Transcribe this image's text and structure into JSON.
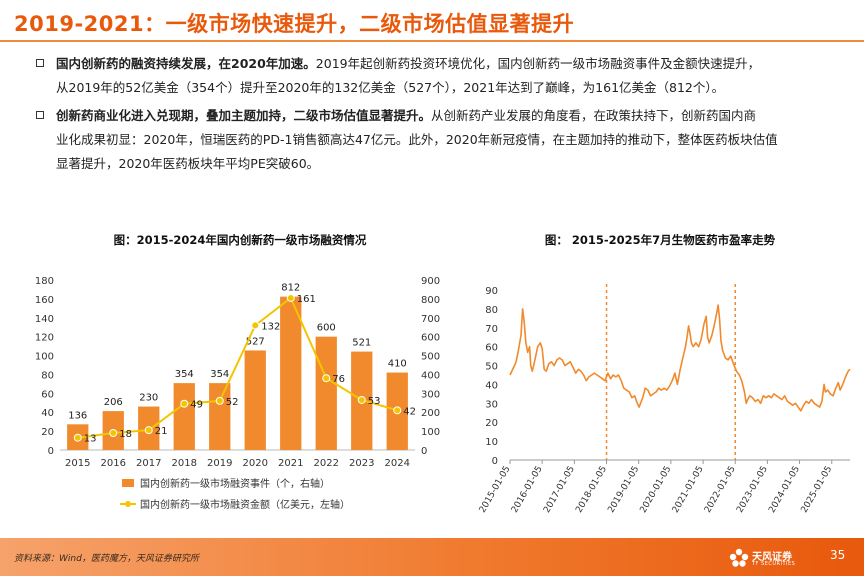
{
  "header": {
    "title": "2019-2021：一级市场快速提升，二级市场估值显著提升"
  },
  "bullets": [
    {
      "bold": "国内创新药的融资持续发展，在2020年加速。",
      "line1": "2019年起创新药投资环境优化，国内创新药一级市场融资事件及金额快速提升，",
      "line2": "从2019年的52亿美金（354个）提升至2020年的132亿美金（527个），2021年达到了巅峰，为161亿美金（812个）。"
    },
    {
      "bold": "创新药商业化进入兑现期，叠加主题加持，二级市场估值显著提升。",
      "line1": "从创新药产业发展的角度看，在政策扶持下，创新药国内商",
      "line2": "业化成果初显：2020年，恒瑞医药的PD-1销售额高达47亿元。此外，2020年新冠疫情，在主题加持的推动下，整体医药板块估值",
      "line3": "显著提升，2020年医药板块年平均PE突破60。"
    }
  ],
  "chart_data": [
    {
      "type": "bar",
      "title": "图：2015-2024年国内创新药一级市场融资情况",
      "categories": [
        "2015",
        "2016",
        "2017",
        "2018",
        "2019",
        "2020",
        "2021",
        "2022",
        "2023",
        "2024"
      ],
      "series": [
        {
          "name": "国内创新药一级市场融资事件（个，右轴）",
          "type": "bar",
          "axis": "right",
          "color": "#f08a2c",
          "values": [
            136,
            206,
            230,
            354,
            354,
            527,
            812,
            600,
            521,
            410
          ]
        },
        {
          "name": "国内创新药一级市场融资金额（亿美元，左轴）",
          "type": "line",
          "axis": "left",
          "color": "#f5c400",
          "values": [
            13,
            18,
            21,
            49,
            52,
            132,
            161,
            76,
            53,
            42
          ]
        }
      ],
      "y_left": {
        "min": 0,
        "max": 180,
        "step": 20
      },
      "y_right": {
        "min": 0,
        "max": 900,
        "step": 100
      },
      "legend_position": "bottom"
    },
    {
      "type": "line",
      "title": "图：  2015-2025年7月生物医药市盈率走势",
      "y": {
        "min": 0,
        "max": 90,
        "step": 10
      },
      "x_ticks": [
        "2015-01-05",
        "2016-01-05",
        "2017-01-05",
        "2018-01-05",
        "2019-01-05",
        "2020-01-05",
        "2021-01-05",
        "2022-01-05",
        "2023-01-05",
        "2024-01-05",
        "2025-01-05"
      ],
      "x_range": [
        "2015-01-05",
        "2025-07-31"
      ],
      "color": "#f08a2c",
      "markers": [
        "2018-01-05",
        "2022-01-05"
      ],
      "points": [
        [
          "2015-01-05",
          45
        ],
        [
          "2015-02-15",
          49
        ],
        [
          "2015-03-15",
          52
        ],
        [
          "2015-04-10",
          58
        ],
        [
          "2015-05-10",
          66
        ],
        [
          "2015-05-28",
          80
        ],
        [
          "2015-06-15",
          73
        ],
        [
          "2015-07-05",
          62
        ],
        [
          "2015-07-25",
          57
        ],
        [
          "2015-08-15",
          60
        ],
        [
          "2015-08-28",
          50
        ],
        [
          "2015-09-15",
          47
        ],
        [
          "2015-10-15",
          53
        ],
        [
          "2015-11-15",
          60
        ],
        [
          "2015-12-15",
          62
        ],
        [
          "2016-01-05",
          59
        ],
        [
          "2016-01-28",
          48
        ],
        [
          "2016-02-20",
          47
        ],
        [
          "2016-03-20",
          51
        ],
        [
          "2016-04-20",
          52
        ],
        [
          "2016-05-20",
          50
        ],
        [
          "2016-06-20",
          53
        ],
        [
          "2016-07-20",
          54
        ],
        [
          "2016-08-20",
          53
        ],
        [
          "2016-09-20",
          50
        ],
        [
          "2016-10-20",
          51
        ],
        [
          "2016-11-20",
          52
        ],
        [
          "2016-12-20",
          49
        ],
        [
          "2017-01-20",
          46
        ],
        [
          "2017-02-20",
          48
        ],
        [
          "2017-03-20",
          47
        ],
        [
          "2017-04-20",
          45
        ],
        [
          "2017-05-20",
          42
        ],
        [
          "2017-06-20",
          44
        ],
        [
          "2017-07-20",
          45
        ],
        [
          "2017-08-20",
          46
        ],
        [
          "2017-09-20",
          45
        ],
        [
          "2017-10-20",
          44
        ],
        [
          "2017-11-20",
          43
        ],
        [
          "2017-12-20",
          42
        ],
        [
          "2018-01-20",
          46
        ],
        [
          "2018-02-20",
          43
        ],
        [
          "2018-03-20",
          45
        ],
        [
          "2018-04-20",
          44
        ],
        [
          "2018-05-20",
          45
        ],
        [
          "2018-06-20",
          42
        ],
        [
          "2018-07-20",
          38
        ],
        [
          "2018-08-20",
          37
        ],
        [
          "2018-09-20",
          36
        ],
        [
          "2018-10-20",
          33
        ],
        [
          "2018-11-20",
          34
        ],
        [
          "2018-12-20",
          30
        ],
        [
          "2019-01-10",
          28
        ],
        [
          "2019-02-20",
          33
        ],
        [
          "2019-03-20",
          38
        ],
        [
          "2019-04-20",
          37
        ],
        [
          "2019-05-20",
          34
        ],
        [
          "2019-06-20",
          35
        ],
        [
          "2019-07-20",
          36
        ],
        [
          "2019-08-20",
          38
        ],
        [
          "2019-09-20",
          37
        ],
        [
          "2019-10-20",
          38
        ],
        [
          "2019-11-20",
          37
        ],
        [
          "2019-12-20",
          39
        ],
        [
          "2020-01-20",
          42
        ],
        [
          "2020-02-20",
          46
        ],
        [
          "2020-03-20",
          40
        ],
        [
          "2020-04-20",
          48
        ],
        [
          "2020-05-20",
          54
        ],
        [
          "2020-06-20",
          60
        ],
        [
          "2020-07-10",
          66
        ],
        [
          "2020-07-25",
          71
        ],
        [
          "2020-08-10",
          67
        ],
        [
          "2020-08-25",
          62
        ],
        [
          "2020-09-15",
          60
        ],
        [
          "2020-10-15",
          62
        ],
        [
          "2020-11-15",
          60
        ],
        [
          "2020-12-15",
          64
        ],
        [
          "2021-01-15",
          72
        ],
        [
          "2021-02-10",
          76
        ],
        [
          "2021-02-25",
          65
        ],
        [
          "2021-03-15",
          62
        ],
        [
          "2021-04-15",
          66
        ],
        [
          "2021-05-15",
          72
        ],
        [
          "2021-06-10",
          78
        ],
        [
          "2021-06-25",
          82
        ],
        [
          "2021-07-10",
          75
        ],
        [
          "2021-07-28",
          63
        ],
        [
          "2021-08-15",
          58
        ],
        [
          "2021-09-15",
          54
        ],
        [
          "2021-10-15",
          53
        ],
        [
          "2021-11-15",
          55
        ],
        [
          "2021-12-15",
          51
        ],
        [
          "2022-01-20",
          47
        ],
        [
          "2022-02-20",
          45
        ],
        [
          "2022-03-20",
          42
        ],
        [
          "2022-04-20",
          36
        ],
        [
          "2022-05-10",
          30
        ],
        [
          "2022-05-25",
          32
        ],
        [
          "2022-06-20",
          34
        ],
        [
          "2022-07-20",
          33
        ],
        [
          "2022-08-20",
          31
        ],
        [
          "2022-09-20",
          32
        ],
        [
          "2022-10-20",
          30
        ],
        [
          "2022-11-20",
          34
        ],
        [
          "2022-12-20",
          33
        ],
        [
          "2023-01-20",
          34
        ],
        [
          "2023-02-20",
          33
        ],
        [
          "2023-03-20",
          35
        ],
        [
          "2023-04-20",
          34
        ],
        [
          "2023-05-20",
          33
        ],
        [
          "2023-06-20",
          32
        ],
        [
          "2023-07-20",
          34
        ],
        [
          "2023-08-20",
          31
        ],
        [
          "2023-09-20",
          30
        ],
        [
          "2023-10-20",
          29
        ],
        [
          "2023-11-20",
          30
        ],
        [
          "2023-12-20",
          28
        ],
        [
          "2024-01-20",
          26
        ],
        [
          "2024-02-20",
          29
        ],
        [
          "2024-03-20",
          31
        ],
        [
          "2024-04-20",
          30
        ],
        [
          "2024-05-20",
          32
        ],
        [
          "2024-06-20",
          30
        ],
        [
          "2024-07-20",
          29
        ],
        [
          "2024-08-20",
          28
        ],
        [
          "2024-09-15",
          31
        ],
        [
          "2024-10-10",
          40
        ],
        [
          "2024-10-25",
          36
        ],
        [
          "2024-11-20",
          37
        ],
        [
          "2024-12-20",
          35
        ],
        [
          "2025-01-20",
          34
        ],
        [
          "2025-02-20",
          38
        ],
        [
          "2025-03-20",
          41
        ],
        [
          "2025-04-10",
          37
        ],
        [
          "2025-05-10",
          40
        ],
        [
          "2025-06-10",
          44
        ],
        [
          "2025-07-10",
          47
        ],
        [
          "2025-07-31",
          48
        ]
      ]
    }
  ],
  "footer": {
    "source": "资料来源：Wind，医药魔方，天风证券研究所",
    "logo_text": "天风证券",
    "logo_sub": "TF SECURITIES",
    "page_number": "35",
    "bar_color": "#f07a2e"
  }
}
